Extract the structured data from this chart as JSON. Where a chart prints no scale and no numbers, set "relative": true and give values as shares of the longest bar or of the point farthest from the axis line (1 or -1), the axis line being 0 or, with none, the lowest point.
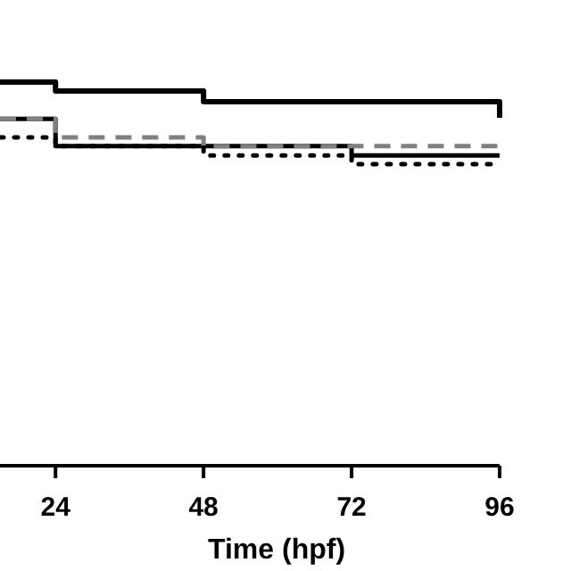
{
  "chart_data": {
    "type": "step",
    "xlabel": "Time (hpf)",
    "relative": true,
    "xlim": [
      15,
      96
    ],
    "xticks": [
      24,
      48,
      72,
      96
    ],
    "series": [
      {
        "color": "#000000",
        "line_style": "solid",
        "x": [
          15,
          24,
          48,
          96
        ],
        "values": [
          1,
          0.977,
          0.949,
          0.907
        ]
      },
      {
        "color": "#000000",
        "line_style": "solid",
        "x": [
          15,
          24,
          72,
          96
        ],
        "values": [
          0.904,
          0.833,
          0.809,
          0.809
        ]
      },
      {
        "color": "#808080",
        "line_style": "dashed",
        "x": [
          15,
          24,
          48,
          96
        ],
        "values": [
          0.904,
          0.856,
          0.833,
          0.833
        ]
      },
      {
        "color": "#000000",
        "line_style": "dotted",
        "x": [
          15,
          24,
          48,
          72,
          96
        ],
        "values": [
          0.856,
          0.833,
          0.809,
          0.786,
          0.786
        ]
      }
    ]
  }
}
